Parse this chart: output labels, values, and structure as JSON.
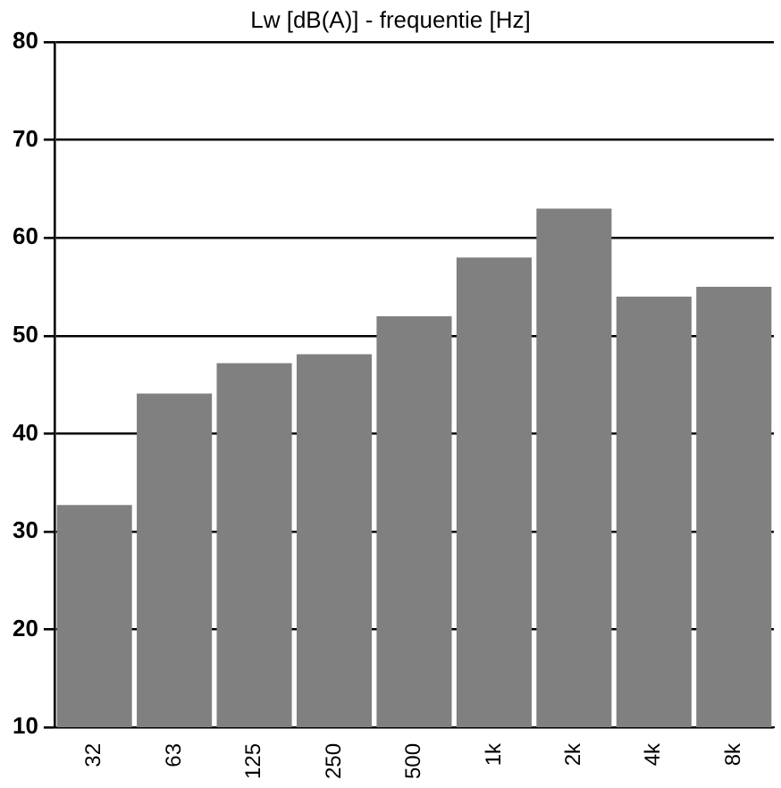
{
  "chart_data": {
    "type": "bar",
    "title": "Lw [dB(A)] - frequentie [Hz]",
    "categories": [
      "32",
      "63",
      "125",
      "250",
      "500",
      "1k",
      "2k",
      "4k",
      "8k"
    ],
    "values": [
      32.7,
      44.1,
      47.2,
      48.1,
      52,
      58,
      63,
      54,
      55
    ],
    "color": "#808080",
    "ylim": [
      10,
      80
    ],
    "yticks": [
      10,
      20,
      30,
      40,
      50,
      60,
      70,
      80
    ],
    "grid": "y",
    "legend": false
  }
}
